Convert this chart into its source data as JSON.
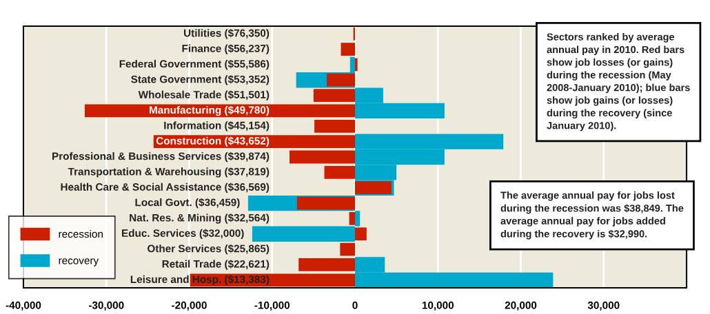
{
  "chart_data": {
    "type": "bar",
    "orientation": "horizontal",
    "categories": [
      "Utilities ($76,350)",
      "Finance ($56,237)",
      "Federal Government ($55,586)",
      "State Government ($53,352)",
      "Wholesale Trade ($51,501)",
      "Manufacturing ($49,780)",
      "Information ($45,154)",
      "Construction ($43,652)",
      "Professional & Business Services ($39,874)",
      "Transportation & Warehousing ($37,819)",
      "Health Care & Social Assistance ($36,569)",
      "Local Govt. ($36,459)",
      "Nat. Res. & Mining ($32,564)",
      "Educ. Services ($32,000)",
      "Other Services ($25,865)",
      "Retail Trade ($22,621)",
      "Leisure and Hosp. ($13,383)"
    ],
    "series": [
      {
        "name": "recovery",
        "color": "#00a9cc",
        "values": [
          null,
          null,
          -600,
          -7100,
          3400,
          10800,
          null,
          17900,
          10800,
          5000,
          4700,
          -12900,
          600,
          -12400,
          null,
          3600,
          23900
        ]
      },
      {
        "name": "recession",
        "color": "#cc1f00",
        "values": [
          -200,
          -1700,
          300,
          -3400,
          -5000,
          -32600,
          -4900,
          -24300,
          -7900,
          -3700,
          4400,
          -7000,
          -700,
          1400,
          -1800,
          -6800,
          -19900
        ]
      }
    ],
    "xlim": [
      -40000,
      40000
    ],
    "xticks": [
      {
        "value": -40000,
        "label": "-40,000"
      },
      {
        "value": -30000,
        "label": "-30,000"
      },
      {
        "value": -20000,
        "label": "-20,000"
      },
      {
        "value": -10000,
        "label": "-10,000"
      },
      0,
      {
        "value": 10000,
        "label": "10,000"
      },
      {
        "value": 20000,
        "label": "20,000"
      },
      {
        "value": 30000,
        "label": "30,000"
      }
    ],
    "grid": "x",
    "legend": "lower left",
    "annotations": [
      "Sectors ranked by average\nannual pay in 2010. Red bars\nshow job losses (or gains)\nduring the recession (May\n2008-January 2010); blue bars\nshow job gains (or losses)\nduring the recovery (since\nJanuary 2010).",
      "The average annual pay for jobs lost\nduring the recession was $38,849. The\naverage annual pay for jobs added\nduring the recovery is $32,990."
    ]
  }
}
